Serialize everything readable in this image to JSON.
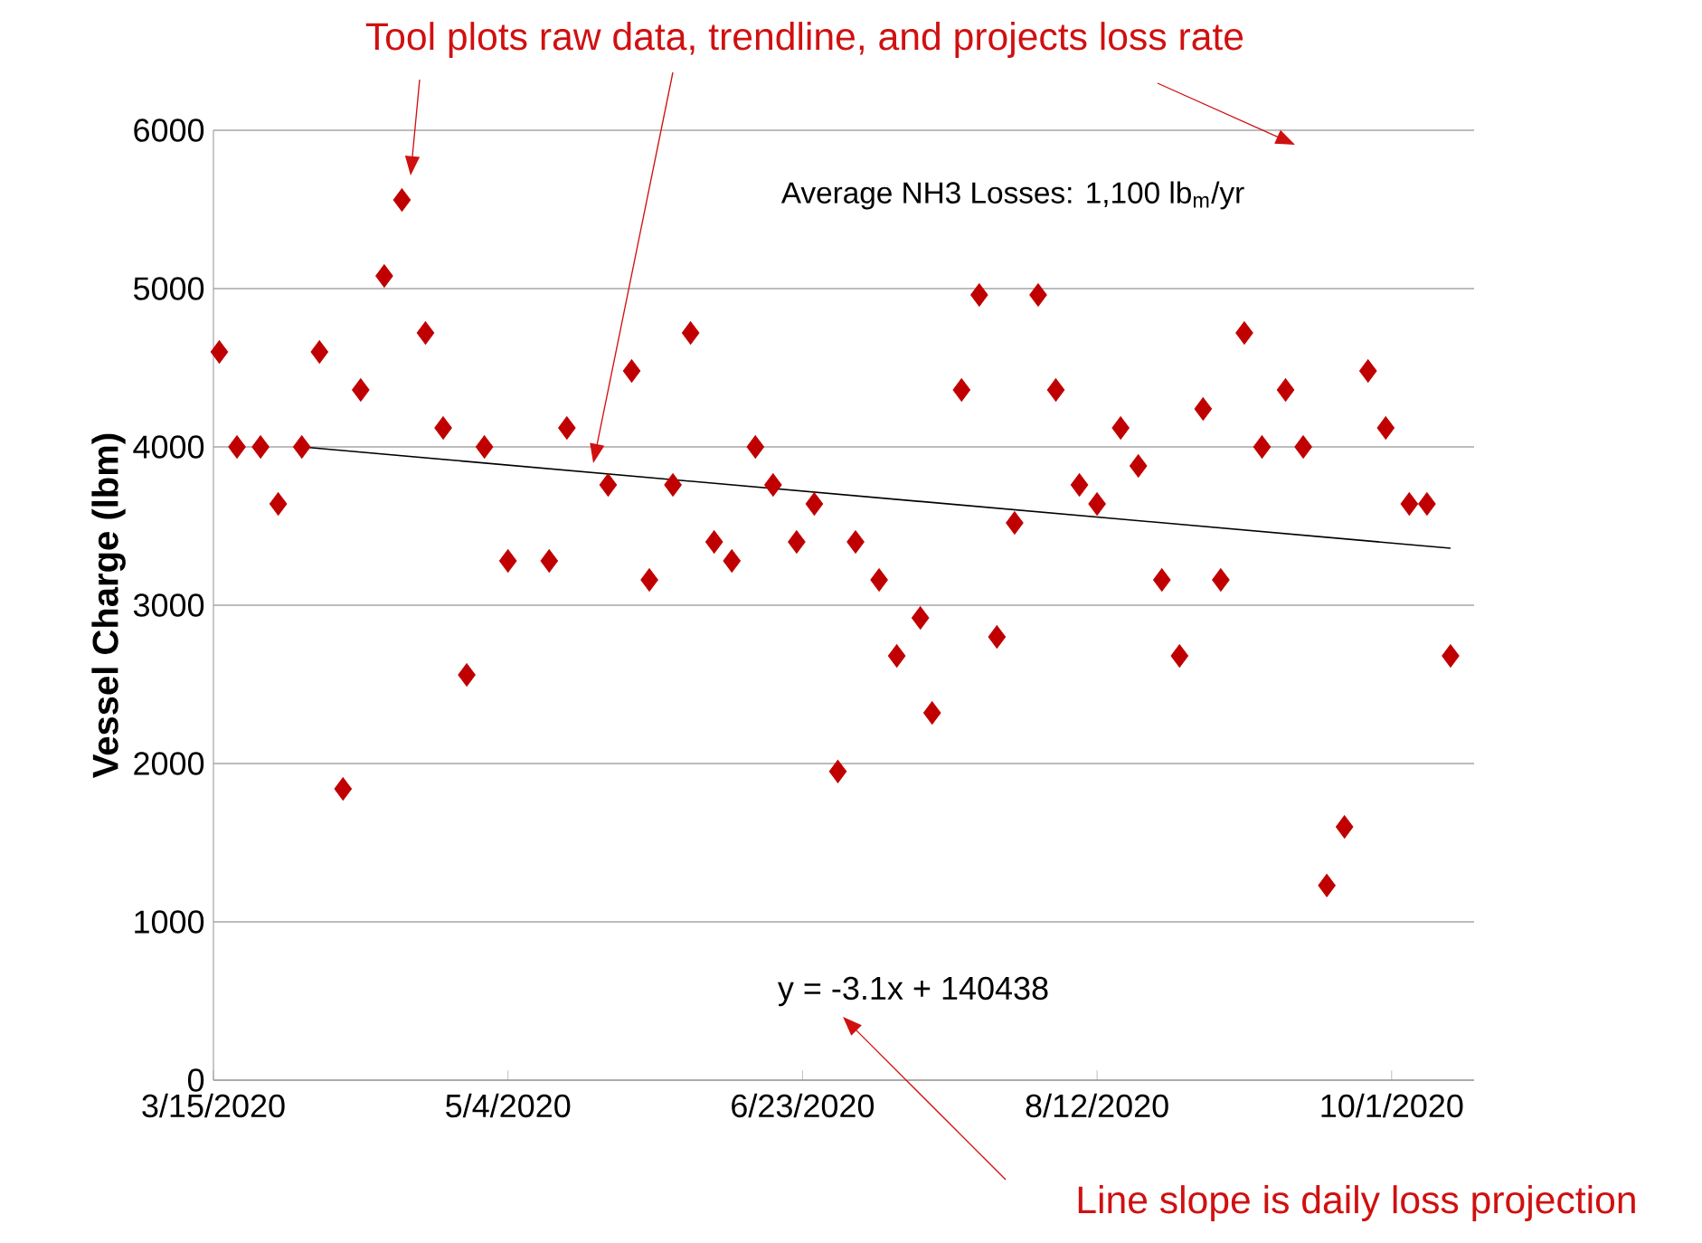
{
  "chart_data": {
    "type": "scatter",
    "ylabel": "Vessel Charge (lbm)",
    "annotations": [
      "Tool plots raw data, trendline, and projects loss rate",
      "Average NH3 Losses: 1,100 lb$_{m}$/yr",
      "y = -3.1x + 140438",
      "Line slope is daily loss projection"
    ],
    "xlim": [
      "2020-03-15",
      "2020-10-15"
    ],
    "xticks": [
      {
        "value": "2020-03-15",
        "label": "3/15/2020"
      },
      {
        "value": "2020-05-04",
        "label": "5/4/2020"
      },
      {
        "value": "2020-06-23",
        "label": "6/23/2020"
      },
      {
        "value": "2020-08-12",
        "label": "8/12/2020"
      },
      {
        "value": "2020-10-01",
        "label": "10/1/2020"
      }
    ],
    "ylim": [
      0,
      6000
    ],
    "yticks": [
      0,
      1000,
      2000,
      3000,
      4000,
      5000,
      6000
    ],
    "grid": "y",
    "series": [
      {
        "marker": "diamond",
        "color": "#c00000",
        "x": [
          "2020-03-16",
          "2020-03-19",
          "2020-03-23",
          "2020-03-26",
          "2020-03-30",
          "2020-04-02",
          "2020-04-06",
          "2020-04-09",
          "2020-04-13",
          "2020-04-16",
          "2020-04-20",
          "2020-04-23",
          "2020-04-27",
          "2020-04-30",
          "2020-05-04",
          "2020-05-11",
          "2020-05-14",
          "2020-05-21",
          "2020-05-25",
          "2020-05-28",
          "2020-06-01",
          "2020-06-04",
          "2020-06-08",
          "2020-06-11",
          "2020-06-15",
          "2020-06-18",
          "2020-06-22",
          "2020-06-25",
          "2020-06-29",
          "2020-07-02",
          "2020-07-06",
          "2020-07-09",
          "2020-07-13",
          "2020-07-15",
          "2020-07-20",
          "2020-07-23",
          "2020-07-26",
          "2020-07-29",
          "2020-08-02",
          "2020-08-05",
          "2020-08-09",
          "2020-08-12",
          "2020-08-16",
          "2020-08-19",
          "2020-08-23",
          "2020-08-26",
          "2020-08-30",
          "2020-09-02",
          "2020-09-06",
          "2020-09-09",
          "2020-09-13",
          "2020-09-16",
          "2020-09-20",
          "2020-09-23",
          "2020-09-27",
          "2020-09-30",
          "2020-10-04",
          "2020-10-07",
          "2020-10-11"
        ],
        "values": [
          4600,
          4000,
          4000,
          3640,
          4000,
          4600,
          1840,
          4360,
          5080,
          5560,
          4720,
          4120,
          2560,
          4000,
          3280,
          3280,
          4120,
          3760,
          4480,
          3160,
          3760,
          4720,
          3400,
          3280,
          4000,
          3760,
          3400,
          3640,
          1950,
          3400,
          3160,
          2680,
          2920,
          2320,
          4360,
          4960,
          2800,
          3520,
          4960,
          4360,
          3760,
          3640,
          4120,
          3880,
          3160,
          2680,
          4240,
          3160,
          4720,
          4000,
          4360,
          4000,
          1230,
          1600,
          4480,
          4120,
          3640,
          3640,
          2680
        ]
      },
      {
        "type": "line",
        "marker": "none",
        "color": "#000000",
        "x": [
          "2020-03-30",
          "2020-10-11"
        ],
        "values": [
          4000,
          3360
        ]
      }
    ]
  }
}
